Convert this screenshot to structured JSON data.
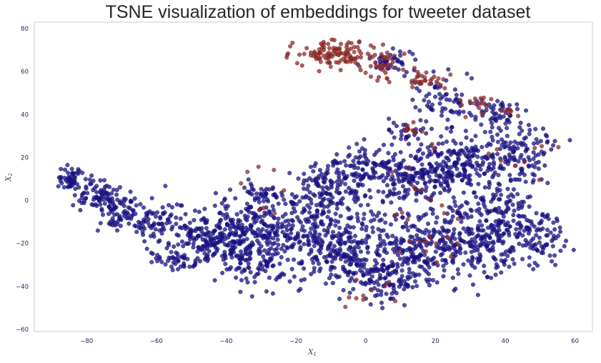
{
  "chart_data": {
    "type": "scatter",
    "title": "TSNE visualization of embeddings for tweeter dataset",
    "xlabel": "X",
    "xlabel_subscript": "1",
    "ylabel": "X",
    "ylabel_subscript": "2",
    "xlim": [
      -95,
      65
    ],
    "ylim": [
      -61,
      83
    ],
    "xticks": [
      -80,
      -60,
      -40,
      -20,
      0,
      20,
      40,
      60
    ],
    "yticks": [
      -60,
      -40,
      -20,
      0,
      20,
      40,
      60,
      80
    ],
    "grid": false,
    "legend": "none",
    "colors": {
      "class_0": "#1a1180",
      "class_1": "#8b2a2a",
      "frame": "#c8cad8"
    },
    "series": [
      {
        "color": "#1a1180",
        "clusters": [
          {
            "cx": -85,
            "cy": 10,
            "rx": 3,
            "ry": 5,
            "n": 50
          },
          {
            "cx": -78,
            "cy": 3,
            "rx": 6,
            "ry": 6,
            "n": 70
          },
          {
            "cx": -70,
            "cy": -5,
            "rx": 6,
            "ry": 9,
            "n": 80
          },
          {
            "cx": -60,
            "cy": -10,
            "rx": 6,
            "ry": 9,
            "n": 70
          },
          {
            "cx": -55,
            "cy": -28,
            "rx": 6,
            "ry": 4,
            "n": 40
          },
          {
            "cx": -48,
            "cy": -15,
            "rx": 7,
            "ry": 10,
            "n": 110
          },
          {
            "cx": -38,
            "cy": -18,
            "rx": 8,
            "ry": 14,
            "n": 170
          },
          {
            "cx": -28,
            "cy": -20,
            "rx": 8,
            "ry": 17,
            "n": 190
          },
          {
            "cx": -30,
            "cy": 3,
            "rx": 5,
            "ry": 4,
            "n": 40
          },
          {
            "cx": -15,
            "cy": -15,
            "rx": 8,
            "ry": 16,
            "n": 160
          },
          {
            "cx": -5,
            "cy": -22,
            "rx": 8,
            "ry": 16,
            "n": 160
          },
          {
            "cx": -10,
            "cy": 5,
            "rx": 8,
            "ry": 10,
            "n": 110
          },
          {
            "cx": 5,
            "cy": -35,
            "rx": 9,
            "ry": 11,
            "n": 130
          },
          {
            "cx": 0,
            "cy": 15,
            "rx": 9,
            "ry": 8,
            "n": 110
          },
          {
            "cx": 15,
            "cy": -20,
            "rx": 10,
            "ry": 16,
            "n": 190
          },
          {
            "cx": 15,
            "cy": 10,
            "rx": 10,
            "ry": 10,
            "n": 170
          },
          {
            "cx": 28,
            "cy": 20,
            "rx": 10,
            "ry": 12,
            "n": 160
          },
          {
            "cx": 30,
            "cy": -20,
            "rx": 10,
            "ry": 16,
            "n": 180
          },
          {
            "cx": 40,
            "cy": -10,
            "rx": 10,
            "ry": 14,
            "n": 150
          },
          {
            "cx": 43,
            "cy": 22,
            "rx": 10,
            "ry": 14,
            "n": 140
          },
          {
            "cx": 50,
            "cy": -18,
            "rx": 6,
            "ry": 10,
            "n": 80
          },
          {
            "cx": 22,
            "cy": 48,
            "rx": 8,
            "ry": 8,
            "n": 60
          },
          {
            "cx": 8,
            "cy": 65,
            "rx": 6,
            "ry": 5,
            "n": 40
          },
          {
            "cx": 12,
            "cy": 32,
            "rx": 5,
            "ry": 4,
            "n": 30
          },
          {
            "cx": 38,
            "cy": 40,
            "rx": 6,
            "ry": 5,
            "n": 40
          }
        ]
      },
      {
        "color": "#8b2a2a",
        "clusters": [
          {
            "cx": -8,
            "cy": 68,
            "rx": 10,
            "ry": 5,
            "n": 120
          },
          {
            "cx": 5,
            "cy": 62,
            "rx": 5,
            "ry": 5,
            "n": 30
          },
          {
            "cx": 16,
            "cy": 56,
            "rx": 6,
            "ry": 4,
            "n": 30
          },
          {
            "cx": 32,
            "cy": 45,
            "rx": 6,
            "ry": 4,
            "n": 15
          },
          {
            "cx": 14,
            "cy": 33,
            "rx": 3,
            "ry": 2,
            "n": 10
          },
          {
            "cx": 40,
            "cy": 42,
            "rx": 3,
            "ry": 2,
            "n": 8
          },
          {
            "cx": 0,
            "cy": -40,
            "rx": 6,
            "ry": 8,
            "n": 10
          },
          {
            "cx": 20,
            "cy": -10,
            "rx": 14,
            "ry": 25,
            "n": 25
          },
          {
            "cx": -30,
            "cy": 5,
            "rx": 10,
            "ry": 10,
            "n": 8
          },
          {
            "cx": 45,
            "cy": 20,
            "rx": 8,
            "ry": 10,
            "n": 10
          }
        ]
      }
    ]
  }
}
